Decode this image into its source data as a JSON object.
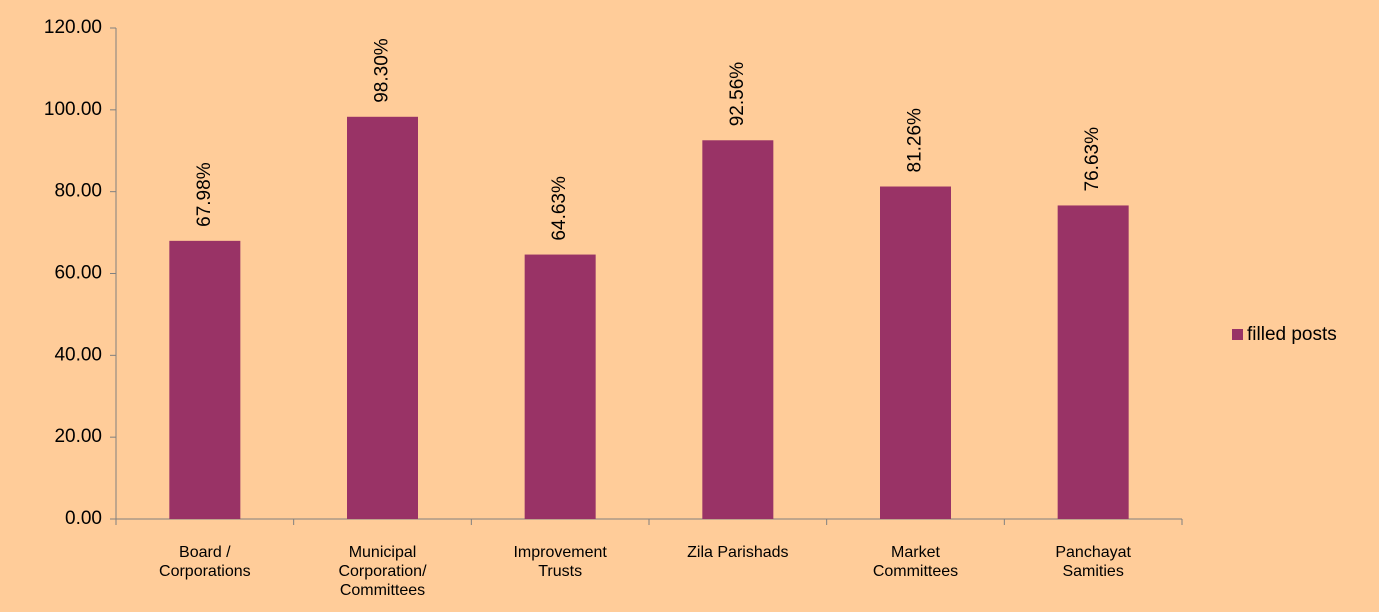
{
  "chart_data": {
    "type": "bar",
    "categories": [
      "Board / Corporations",
      "Municipal Corporation/ Committees",
      "Improvement Trusts",
      "Zila Parishads",
      "Market Committees",
      "Panchayat Samities"
    ],
    "series": [
      {
        "name": "filled posts",
        "color": "#993366",
        "values": [
          67.98,
          98.3,
          64.63,
          92.56,
          81.26,
          76.63
        ],
        "value_labels": [
          "67.98%",
          "98.30%",
          "64.63%",
          "92.56%",
          "81.26%",
          "76.63%"
        ]
      }
    ],
    "ylim": [
      0,
      120
    ],
    "yticks": [
      {
        "value": 0,
        "label": "0.00"
      },
      {
        "value": 20,
        "label": "20.00"
      },
      {
        "value": 40,
        "label": "40.00"
      },
      {
        "value": 60,
        "label": "60.00"
      },
      {
        "value": 80,
        "label": "80.00"
      },
      {
        "value": 100,
        "label": "100.00"
      },
      {
        "value": 120,
        "label": "120.00"
      }
    ],
    "grid": false,
    "legend": "right"
  }
}
